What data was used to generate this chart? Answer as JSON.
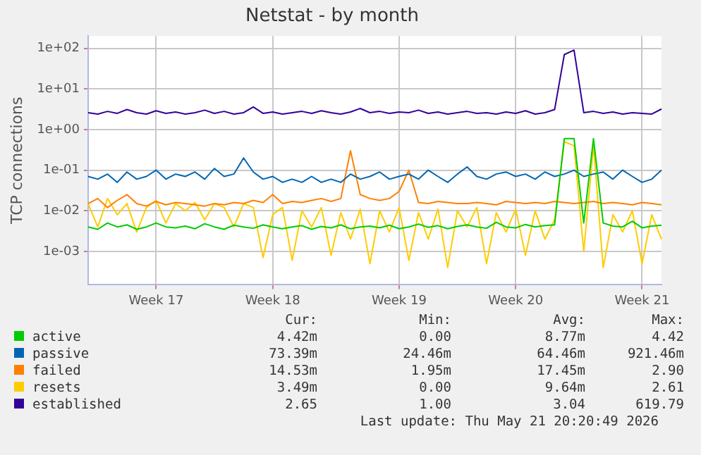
{
  "chart_data": {
    "type": "line",
    "title": "Netstat - by month",
    "ylabel": "TCP connections",
    "log": true,
    "grid": true,
    "legend": "bottom",
    "marker": "none",
    "line_style": "solid",
    "ylim": [
      0.00015,
      200
    ],
    "yticks": [
      {
        "value": 0.001,
        "label": "1e-03"
      },
      {
        "value": 0.01,
        "label": "1e-02"
      },
      {
        "value": 0.1,
        "label": "1e-01"
      },
      {
        "value": 1,
        "label": "1e+00"
      },
      {
        "value": 10,
        "label": "1e+01"
      },
      {
        "value": 100,
        "label": "1e+02"
      }
    ],
    "categories": [
      null,
      null,
      null,
      null,
      null,
      null,
      null,
      "Week 17",
      null,
      null,
      null,
      null,
      null,
      null,
      null,
      null,
      null,
      null,
      null,
      "Week 18",
      null,
      null,
      null,
      null,
      null,
      null,
      null,
      null,
      null,
      null,
      null,
      null,
      "Week 19",
      null,
      null,
      null,
      null,
      null,
      null,
      null,
      null,
      null,
      null,
      null,
      "Week 20",
      null,
      null,
      null,
      null,
      null,
      null,
      null,
      null,
      null,
      null,
      null,
      null,
      "Week 21",
      null,
      null
    ],
    "series": [
      {
        "name": "active",
        "color": "#00cc00",
        "values": [
          0.004,
          0.0035,
          0.005,
          0.004,
          0.0045,
          0.0035,
          0.004,
          0.005,
          0.004,
          0.0038,
          0.0042,
          0.0036,
          0.0048,
          0.004,
          0.0035,
          0.0044,
          0.004,
          0.0037,
          0.0045,
          0.004,
          0.0036,
          0.004,
          0.0043,
          0.0035,
          0.0041,
          0.0038,
          0.0045,
          0.0036,
          0.004,
          0.0042,
          0.0038,
          0.0044,
          0.0036,
          0.004,
          0.0047,
          0.0039,
          0.0043,
          0.0036,
          0.0041,
          0.0045,
          0.004,
          0.0037,
          0.0052,
          0.004,
          0.0038,
          0.0046,
          0.004,
          0.0043,
          0.0045,
          0.6,
          0.6,
          0.005,
          0.6,
          0.005,
          0.0042,
          0.004,
          0.0055,
          0.0038,
          0.0042,
          0.0044
        ]
      },
      {
        "name": "passive",
        "color": "#0066b3",
        "values": [
          0.07,
          0.06,
          0.08,
          0.05,
          0.09,
          0.06,
          0.07,
          0.1,
          0.06,
          0.08,
          0.07,
          0.09,
          0.06,
          0.11,
          0.07,
          0.08,
          0.2,
          0.09,
          0.06,
          0.07,
          0.05,
          0.06,
          0.05,
          0.07,
          0.05,
          0.06,
          0.05,
          0.08,
          0.06,
          0.07,
          0.09,
          0.06,
          0.07,
          0.08,
          0.06,
          0.1,
          0.07,
          0.05,
          0.08,
          0.12,
          0.07,
          0.06,
          0.08,
          0.09,
          0.07,
          0.08,
          0.06,
          0.09,
          0.07,
          0.08,
          0.1,
          0.07,
          0.08,
          0.09,
          0.06,
          0.1,
          0.07,
          0.05,
          0.06,
          0.1
        ]
      },
      {
        "name": "failed",
        "color": "#ff8000",
        "values": [
          0.015,
          0.02,
          0.012,
          0.018,
          0.025,
          0.015,
          0.013,
          0.017,
          0.014,
          0.016,
          0.015,
          0.014,
          0.013,
          0.015,
          0.014,
          0.016,
          0.015,
          0.018,
          0.016,
          0.025,
          0.015,
          0.017,
          0.016,
          0.018,
          0.02,
          0.017,
          0.02,
          0.3,
          0.025,
          0.02,
          0.018,
          0.02,
          0.03,
          0.1,
          0.016,
          0.015,
          0.017,
          0.016,
          0.015,
          0.015,
          0.016,
          0.015,
          0.014,
          0.017,
          0.016,
          0.015,
          0.016,
          0.015,
          0.017,
          0.016,
          0.015,
          0.016,
          0.017,
          0.015,
          0.016,
          0.015,
          0.014,
          0.016,
          0.015,
          0.014
        ]
      },
      {
        "name": "resets",
        "color": "#ffcc00",
        "values": [
          0.015,
          0.004,
          0.02,
          0.008,
          0.015,
          0.003,
          0.012,
          0.018,
          0.005,
          0.015,
          0.01,
          0.016,
          0.006,
          0.015,
          0.012,
          0.004,
          0.015,
          0.012,
          0.0007,
          0.008,
          0.012,
          0.0006,
          0.01,
          0.004,
          0.012,
          0.0008,
          0.009,
          0.002,
          0.011,
          0.0005,
          0.01,
          0.003,
          0.012,
          0.0006,
          0.009,
          0.002,
          0.011,
          0.0004,
          0.01,
          0.004,
          0.012,
          0.0005,
          0.009,
          0.003,
          0.011,
          0.0008,
          0.01,
          0.002,
          0.006,
          0.5,
          0.4,
          0.001,
          0.4,
          0.0004,
          0.008,
          0.003,
          0.01,
          0.0005,
          0.008,
          0.002
        ]
      },
      {
        "name": "established",
        "color": "#330099",
        "values": [
          2.6,
          2.4,
          2.8,
          2.5,
          3.1,
          2.6,
          2.4,
          2.9,
          2.5,
          2.7,
          2.4,
          2.6,
          3.0,
          2.5,
          2.8,
          2.4,
          2.6,
          3.6,
          2.5,
          2.7,
          2.4,
          2.6,
          2.8,
          2.5,
          2.9,
          2.6,
          2.4,
          2.7,
          3.3,
          2.6,
          2.8,
          2.5,
          2.7,
          2.6,
          3.0,
          2.5,
          2.7,
          2.4,
          2.6,
          2.8,
          2.5,
          2.6,
          2.4,
          2.7,
          2.5,
          2.9,
          2.4,
          2.6,
          3.1,
          70,
          90,
          2.6,
          2.8,
          2.5,
          2.7,
          2.4,
          2.6,
          2.5,
          2.4,
          3.2
        ]
      }
    ],
    "annotations": [
      "Cur:",
      "Min:",
      "Avg:",
      "Max:",
      "4.42m",
      "0.00",
      "8.77m",
      "4.42",
      "73.39m",
      "24.46m",
      "64.46m",
      "921.46m",
      "14.53m",
      "1.95m",
      "17.45m",
      "2.90",
      "3.49m",
      "0.00",
      "9.64m",
      "2.61",
      "2.65",
      "1.00",
      "3.04",
      "619.79",
      "Last update: Thu May 21 20:20:49 2026"
    ]
  }
}
